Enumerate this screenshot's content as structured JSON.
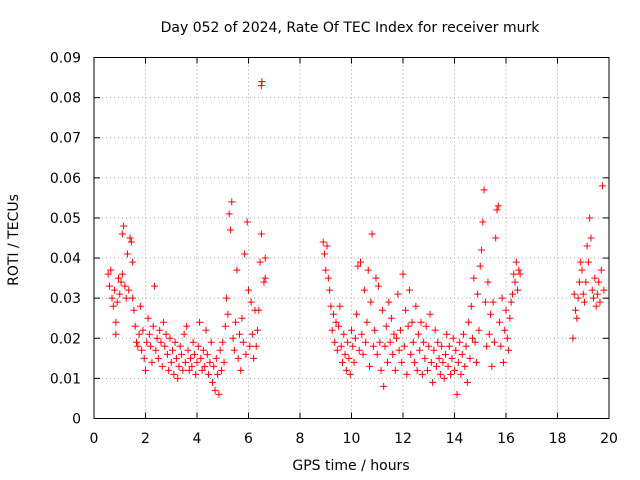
{
  "chart_data": {
    "type": "scatter",
    "title": "Day 052 of 2024, Rate Of TEC Index for receiver murk",
    "xlabel": "GPS time / hours",
    "ylabel": "ROTI / TECUs",
    "xlim": [
      0,
      20
    ],
    "ylim": [
      0,
      0.09
    ],
    "xticks": [
      0,
      2,
      4,
      6,
      8,
      10,
      12,
      14,
      16,
      18,
      20
    ],
    "yticks": [
      0,
      0.01,
      0.02,
      0.03,
      0.04,
      0.05,
      0.06,
      0.07,
      0.08,
      0.09
    ],
    "xtick_labels": [
      "0",
      "2",
      "4",
      "6",
      "8",
      "10",
      "12",
      "14",
      "16",
      "18",
      "20"
    ],
    "ytick_labels": [
      "0",
      "0.01",
      "0.02",
      "0.03",
      "0.04",
      "0.05",
      "0.06",
      "0.07",
      "0.08",
      "0.09"
    ],
    "grid": true,
    "marker": "+",
    "color": "#ff0000",
    "series": [
      {
        "name": "ROTI",
        "points": [
          [
            0.55,
            0.036
          ],
          [
            0.6,
            0.033
          ],
          [
            0.65,
            0.037
          ],
          [
            0.7,
            0.03
          ],
          [
            0.75,
            0.028
          ],
          [
            0.8,
            0.032
          ],
          [
            0.85,
            0.024
          ],
          [
            0.85,
            0.021
          ],
          [
            0.9,
            0.029
          ],
          [
            0.95,
            0.035
          ],
          [
            1.0,
            0.031
          ],
          [
            1.05,
            0.034
          ],
          [
            1.1,
            0.036
          ],
          [
            1.1,
            0.046
          ],
          [
            1.15,
            0.048
          ],
          [
            1.2,
            0.033
          ],
          [
            1.25,
            0.03
          ],
          [
            1.3,
            0.041
          ],
          [
            1.35,
            0.032
          ],
          [
            1.4,
            0.045
          ],
          [
            1.45,
            0.044
          ],
          [
            1.5,
            0.039
          ],
          [
            1.5,
            0.03
          ],
          [
            1.55,
            0.027
          ],
          [
            1.6,
            0.023
          ],
          [
            1.65,
            0.019
          ],
          [
            1.7,
            0.018
          ],
          [
            1.75,
            0.021
          ],
          [
            1.8,
            0.028
          ],
          [
            1.85,
            0.017
          ],
          [
            1.9,
            0.022
          ],
          [
            1.95,
            0.015
          ],
          [
            2.0,
            0.012
          ],
          [
            2.05,
            0.019
          ],
          [
            2.1,
            0.025
          ],
          [
            2.15,
            0.021
          ],
          [
            2.2,
            0.018
          ],
          [
            2.25,
            0.014
          ],
          [
            2.3,
            0.023
          ],
          [
            2.35,
            0.033
          ],
          [
            2.4,
            0.017
          ],
          [
            2.45,
            0.02
          ],
          [
            2.5,
            0.015
          ],
          [
            2.55,
            0.022
          ],
          [
            2.6,
            0.019
          ],
          [
            2.65,
            0.013
          ],
          [
            2.7,
            0.024
          ],
          [
            2.75,
            0.018
          ],
          [
            2.8,
            0.021
          ],
          [
            2.85,
            0.016
          ],
          [
            2.9,
            0.012
          ],
          [
            2.95,
            0.02
          ],
          [
            3.0,
            0.014
          ],
          [
            3.05,
            0.017
          ],
          [
            3.1,
            0.011
          ],
          [
            3.15,
            0.019
          ],
          [
            3.2,
            0.015
          ],
          [
            3.25,
            0.01
          ],
          [
            3.3,
            0.013
          ],
          [
            3.35,
            0.018
          ],
          [
            3.4,
            0.016
          ],
          [
            3.45,
            0.012
          ],
          [
            3.5,
            0.021
          ],
          [
            3.55,
            0.014
          ],
          [
            3.6,
            0.023
          ],
          [
            3.65,
            0.017
          ],
          [
            3.7,
            0.012
          ],
          [
            3.75,
            0.015
          ],
          [
            3.8,
            0.013
          ],
          [
            3.85,
            0.019
          ],
          [
            3.9,
            0.016
          ],
          [
            3.95,
            0.011
          ],
          [
            4.0,
            0.014
          ],
          [
            4.05,
            0.018
          ],
          [
            4.1,
            0.024
          ],
          [
            4.15,
            0.015
          ],
          [
            4.2,
            0.012
          ],
          [
            4.25,
            0.017
          ],
          [
            4.3,
            0.013
          ],
          [
            4.35,
            0.022
          ],
          [
            4.4,
            0.016
          ],
          [
            4.45,
            0.011
          ],
          [
            4.5,
            0.014
          ],
          [
            4.55,
            0.019
          ],
          [
            4.6,
            0.009
          ],
          [
            4.65,
            0.013
          ],
          [
            4.7,
            0.007
          ],
          [
            4.75,
            0.015
          ],
          [
            4.8,
            0.011
          ],
          [
            4.85,
            0.006
          ],
          [
            4.9,
            0.017
          ],
          [
            4.95,
            0.012
          ],
          [
            5.0,
            0.019
          ],
          [
            5.05,
            0.014
          ],
          [
            5.1,
            0.023
          ],
          [
            5.15,
            0.03
          ],
          [
            5.2,
            0.026
          ],
          [
            5.25,
            0.051
          ],
          [
            5.3,
            0.047
          ],
          [
            5.35,
            0.054
          ],
          [
            5.4,
            0.02
          ],
          [
            5.45,
            0.017
          ],
          [
            5.5,
            0.024
          ],
          [
            5.55,
            0.037
          ],
          [
            5.6,
            0.015
          ],
          [
            5.65,
            0.021
          ],
          [
            5.7,
            0.012
          ],
          [
            5.75,
            0.025
          ],
          [
            5.8,
            0.019
          ],
          [
            5.85,
            0.041
          ],
          [
            5.9,
            0.016
          ],
          [
            5.95,
            0.049
          ],
          [
            6.0,
            0.032
          ],
          [
            6.05,
            0.018
          ],
          [
            6.1,
            0.029
          ],
          [
            6.15,
            0.021
          ],
          [
            6.2,
            0.015
          ],
          [
            6.25,
            0.027
          ],
          [
            6.3,
            0.018
          ],
          [
            6.35,
            0.022
          ],
          [
            6.4,
            0.027
          ],
          [
            6.45,
            0.039
          ],
          [
            6.5,
            0.046
          ],
          [
            6.5,
            0.083
          ],
          [
            6.52,
            0.084
          ],
          [
            6.6,
            0.034
          ],
          [
            6.65,
            0.035
          ],
          [
            6.65,
            0.04
          ],
          [
            8.9,
            0.044
          ],
          [
            8.95,
            0.041
          ],
          [
            9.0,
            0.037
          ],
          [
            9.05,
            0.043
          ],
          [
            9.1,
            0.035
          ],
          [
            9.15,
            0.032
          ],
          [
            9.2,
            0.028
          ],
          [
            9.25,
            0.022
          ],
          [
            9.3,
            0.026
          ],
          [
            9.35,
            0.019
          ],
          [
            9.4,
            0.024
          ],
          [
            9.45,
            0.017
          ],
          [
            9.5,
            0.023
          ],
          [
            9.55,
            0.028
          ],
          [
            9.6,
            0.018
          ],
          [
            9.65,
            0.014
          ],
          [
            9.7,
            0.021
          ],
          [
            9.75,
            0.016
          ],
          [
            9.8,
            0.012
          ],
          [
            9.85,
            0.019
          ],
          [
            9.9,
            0.015
          ],
          [
            9.95,
            0.011
          ],
          [
            10.0,
            0.022
          ],
          [
            10.05,
            0.018
          ],
          [
            10.1,
            0.014
          ],
          [
            10.15,
            0.02
          ],
          [
            10.2,
            0.026
          ],
          [
            10.25,
            0.038
          ],
          [
            10.3,
            0.017
          ],
          [
            10.35,
            0.039
          ],
          [
            10.4,
            0.021
          ],
          [
            10.45,
            0.016
          ],
          [
            10.5,
            0.032
          ],
          [
            10.55,
            0.019
          ],
          [
            10.6,
            0.024
          ],
          [
            10.65,
            0.037
          ],
          [
            10.7,
            0.013
          ],
          [
            10.75,
            0.029
          ],
          [
            10.8,
            0.046
          ],
          [
            10.85,
            0.018
          ],
          [
            10.9,
            0.022
          ],
          [
            10.95,
            0.035
          ],
          [
            11.0,
            0.016
          ],
          [
            11.05,
            0.033
          ],
          [
            11.1,
            0.019
          ],
          [
            11.15,
            0.012
          ],
          [
            11.2,
            0.027
          ],
          [
            11.25,
            0.008
          ],
          [
            11.3,
            0.018
          ],
          [
            11.35,
            0.023
          ],
          [
            11.4,
            0.014
          ],
          [
            11.45,
            0.029
          ],
          [
            11.5,
            0.019
          ],
          [
            11.55,
            0.025
          ],
          [
            11.6,
            0.016
          ],
          [
            11.65,
            0.021
          ],
          [
            11.7,
            0.012
          ],
          [
            11.75,
            0.02
          ],
          [
            11.8,
            0.031
          ],
          [
            11.85,
            0.017
          ],
          [
            11.9,
            0.022
          ],
          [
            11.95,
            0.014
          ],
          [
            12.0,
            0.036
          ],
          [
            12.05,
            0.018
          ],
          [
            12.1,
            0.027
          ],
          [
            12.15,
            0.011
          ],
          [
            12.2,
            0.023
          ],
          [
            12.25,
            0.032
          ],
          [
            12.3,
            0.016
          ],
          [
            12.35,
            0.024
          ],
          [
            12.4,
            0.019
          ],
          [
            12.45,
            0.014
          ],
          [
            12.5,
            0.028
          ],
          [
            12.55,
            0.012
          ],
          [
            12.6,
            0.021
          ],
          [
            12.65,
            0.017
          ],
          [
            12.7,
            0.024
          ],
          [
            12.75,
            0.011
          ],
          [
            12.8,
            0.019
          ],
          [
            12.85,
            0.015
          ],
          [
            12.9,
            0.023
          ],
          [
            12.95,
            0.012
          ],
          [
            13.0,
            0.018
          ],
          [
            13.05,
            0.026
          ],
          [
            13.1,
            0.014
          ],
          [
            13.15,
            0.009
          ],
          [
            13.2,
            0.017
          ],
          [
            13.25,
            0.022
          ],
          [
            13.3,
            0.013
          ],
          [
            13.35,
            0.019
          ],
          [
            13.4,
            0.015
          ],
          [
            13.45,
            0.011
          ],
          [
            13.5,
            0.018
          ],
          [
            13.55,
            0.014
          ],
          [
            13.6,
            0.01
          ],
          [
            13.65,
            0.016
          ],
          [
            13.7,
            0.021
          ],
          [
            13.75,
            0.013
          ],
          [
            13.8,
            0.018
          ],
          [
            13.85,
            0.011
          ],
          [
            13.9,
            0.015
          ],
          [
            13.95,
            0.02
          ],
          [
            14.0,
            0.012
          ],
          [
            14.05,
            0.017
          ],
          [
            14.1,
            0.006
          ],
          [
            14.15,
            0.014
          ],
          [
            14.2,
            0.019
          ],
          [
            14.25,
            0.011
          ],
          [
            14.3,
            0.016
          ],
          [
            14.35,
            0.021
          ],
          [
            14.4,
            0.013
          ],
          [
            14.45,
            0.018
          ],
          [
            14.5,
            0.009
          ],
          [
            14.55,
            0.024
          ],
          [
            14.6,
            0.015
          ],
          [
            14.65,
            0.028
          ],
          [
            14.7,
            0.02
          ],
          [
            14.75,
            0.035
          ],
          [
            14.8,
            0.019
          ],
          [
            14.85,
            0.014
          ],
          [
            14.9,
            0.031
          ],
          [
            14.95,
            0.022
          ],
          [
            15.0,
            0.038
          ],
          [
            15.05,
            0.042
          ],
          [
            15.1,
            0.049
          ],
          [
            15.15,
            0.057
          ],
          [
            15.2,
            0.029
          ],
          [
            15.25,
            0.018
          ],
          [
            15.3,
            0.034
          ],
          [
            15.35,
            0.021
          ],
          [
            15.4,
            0.026
          ],
          [
            15.45,
            0.013
          ],
          [
            15.5,
            0.029
          ],
          [
            15.55,
            0.019
          ],
          [
            15.6,
            0.045
          ],
          [
            15.65,
            0.052
          ],
          [
            15.7,
            0.053
          ],
          [
            15.75,
            0.024
          ],
          [
            15.8,
            0.018
          ],
          [
            15.85,
            0.03
          ],
          [
            15.9,
            0.014
          ],
          [
            15.95,
            0.022
          ],
          [
            16.0,
            0.027
          ],
          [
            16.05,
            0.02
          ],
          [
            16.1,
            0.017
          ],
          [
            16.15,
            0.025
          ],
          [
            16.2,
            0.029
          ],
          [
            16.25,
            0.031
          ],
          [
            16.3,
            0.036
          ],
          [
            16.35,
            0.034
          ],
          [
            16.4,
            0.039
          ],
          [
            16.45,
            0.032
          ],
          [
            16.5,
            0.037
          ],
          [
            16.55,
            0.036
          ],
          [
            18.6,
            0.02
          ],
          [
            18.65,
            0.031
          ],
          [
            18.7,
            0.027
          ],
          [
            18.75,
            0.025
          ],
          [
            18.8,
            0.03
          ],
          [
            18.85,
            0.034
          ],
          [
            18.9,
            0.039
          ],
          [
            18.95,
            0.037
          ],
          [
            19.0,
            0.031
          ],
          [
            19.05,
            0.029
          ],
          [
            19.1,
            0.034
          ],
          [
            19.15,
            0.043
          ],
          [
            19.2,
            0.039
          ],
          [
            19.25,
            0.05
          ],
          [
            19.3,
            0.045
          ],
          [
            19.35,
            0.032
          ],
          [
            19.4,
            0.03
          ],
          [
            19.45,
            0.035
          ],
          [
            19.5,
            0.028
          ],
          [
            19.55,
            0.031
          ],
          [
            19.6,
            0.034
          ],
          [
            19.65,
            0.029
          ],
          [
            19.7,
            0.037
          ],
          [
            19.75,
            0.058
          ],
          [
            19.8,
            0.032
          ]
        ]
      }
    ]
  }
}
